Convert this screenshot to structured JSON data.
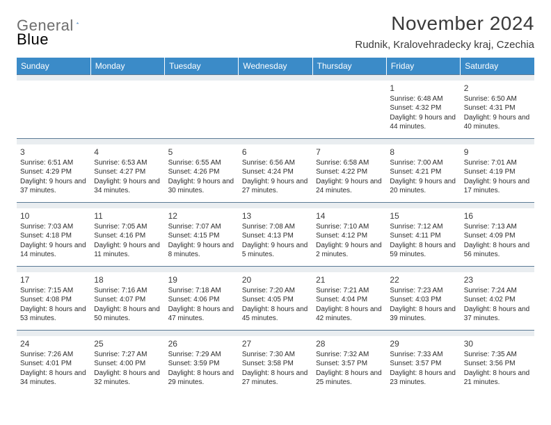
{
  "logo": {
    "text_gray": "General",
    "text_blue": "Blue",
    "shape_color": "#2a6fb5"
  },
  "header": {
    "month_title": "November 2024",
    "location": "Rudnik, Kralovehradecky kraj, Czechia"
  },
  "colors": {
    "header_row_bg": "#3b8bc8",
    "header_row_text": "#ffffff",
    "sep_bg": "#e9edf0",
    "sep_border": "#5a7a95",
    "body_text": "#2b2b2b",
    "title_text": "#3a3a3a"
  },
  "weekdays": [
    "Sunday",
    "Monday",
    "Tuesday",
    "Wednesday",
    "Thursday",
    "Friday",
    "Saturday"
  ],
  "weeks": [
    [
      null,
      null,
      null,
      null,
      null,
      {
        "n": "1",
        "sr": "6:48 AM",
        "ss": "4:32 PM",
        "dl": "9 hours and 44 minutes."
      },
      {
        "n": "2",
        "sr": "6:50 AM",
        "ss": "4:31 PM",
        "dl": "9 hours and 40 minutes."
      }
    ],
    [
      {
        "n": "3",
        "sr": "6:51 AM",
        "ss": "4:29 PM",
        "dl": "9 hours and 37 minutes."
      },
      {
        "n": "4",
        "sr": "6:53 AM",
        "ss": "4:27 PM",
        "dl": "9 hours and 34 minutes."
      },
      {
        "n": "5",
        "sr": "6:55 AM",
        "ss": "4:26 PM",
        "dl": "9 hours and 30 minutes."
      },
      {
        "n": "6",
        "sr": "6:56 AM",
        "ss": "4:24 PM",
        "dl": "9 hours and 27 minutes."
      },
      {
        "n": "7",
        "sr": "6:58 AM",
        "ss": "4:22 PM",
        "dl": "9 hours and 24 minutes."
      },
      {
        "n": "8",
        "sr": "7:00 AM",
        "ss": "4:21 PM",
        "dl": "9 hours and 20 minutes."
      },
      {
        "n": "9",
        "sr": "7:01 AM",
        "ss": "4:19 PM",
        "dl": "9 hours and 17 minutes."
      }
    ],
    [
      {
        "n": "10",
        "sr": "7:03 AM",
        "ss": "4:18 PM",
        "dl": "9 hours and 14 minutes."
      },
      {
        "n": "11",
        "sr": "7:05 AM",
        "ss": "4:16 PM",
        "dl": "9 hours and 11 minutes."
      },
      {
        "n": "12",
        "sr": "7:07 AM",
        "ss": "4:15 PM",
        "dl": "9 hours and 8 minutes."
      },
      {
        "n": "13",
        "sr": "7:08 AM",
        "ss": "4:13 PM",
        "dl": "9 hours and 5 minutes."
      },
      {
        "n": "14",
        "sr": "7:10 AM",
        "ss": "4:12 PM",
        "dl": "9 hours and 2 minutes."
      },
      {
        "n": "15",
        "sr": "7:12 AM",
        "ss": "4:11 PM",
        "dl": "8 hours and 59 minutes."
      },
      {
        "n": "16",
        "sr": "7:13 AM",
        "ss": "4:09 PM",
        "dl": "8 hours and 56 minutes."
      }
    ],
    [
      {
        "n": "17",
        "sr": "7:15 AM",
        "ss": "4:08 PM",
        "dl": "8 hours and 53 minutes."
      },
      {
        "n": "18",
        "sr": "7:16 AM",
        "ss": "4:07 PM",
        "dl": "8 hours and 50 minutes."
      },
      {
        "n": "19",
        "sr": "7:18 AM",
        "ss": "4:06 PM",
        "dl": "8 hours and 47 minutes."
      },
      {
        "n": "20",
        "sr": "7:20 AM",
        "ss": "4:05 PM",
        "dl": "8 hours and 45 minutes."
      },
      {
        "n": "21",
        "sr": "7:21 AM",
        "ss": "4:04 PM",
        "dl": "8 hours and 42 minutes."
      },
      {
        "n": "22",
        "sr": "7:23 AM",
        "ss": "4:03 PM",
        "dl": "8 hours and 39 minutes."
      },
      {
        "n": "23",
        "sr": "7:24 AM",
        "ss": "4:02 PM",
        "dl": "8 hours and 37 minutes."
      }
    ],
    [
      {
        "n": "24",
        "sr": "7:26 AM",
        "ss": "4:01 PM",
        "dl": "8 hours and 34 minutes."
      },
      {
        "n": "25",
        "sr": "7:27 AM",
        "ss": "4:00 PM",
        "dl": "8 hours and 32 minutes."
      },
      {
        "n": "26",
        "sr": "7:29 AM",
        "ss": "3:59 PM",
        "dl": "8 hours and 29 minutes."
      },
      {
        "n": "27",
        "sr": "7:30 AM",
        "ss": "3:58 PM",
        "dl": "8 hours and 27 minutes."
      },
      {
        "n": "28",
        "sr": "7:32 AM",
        "ss": "3:57 PM",
        "dl": "8 hours and 25 minutes."
      },
      {
        "n": "29",
        "sr": "7:33 AM",
        "ss": "3:57 PM",
        "dl": "8 hours and 23 minutes."
      },
      {
        "n": "30",
        "sr": "7:35 AM",
        "ss": "3:56 PM",
        "dl": "8 hours and 21 minutes."
      }
    ]
  ],
  "labels": {
    "sunrise": "Sunrise:",
    "sunset": "Sunset:",
    "daylight": "Daylight:"
  }
}
